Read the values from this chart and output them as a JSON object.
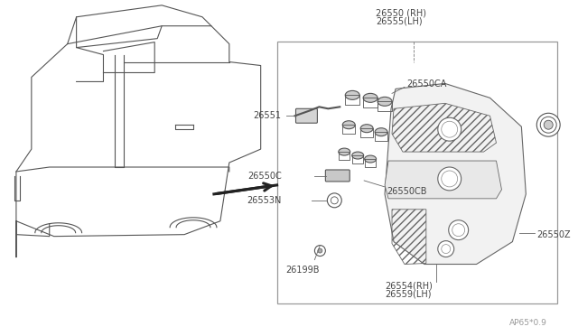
{
  "bg_color": "#ffffff",
  "line_color": "#555555",
  "text_color": "#555555",
  "watermark": "AP65*0.9",
  "labels": {
    "26550_RH": "26550 (RH)",
    "26555_LH": "26555(LH)",
    "26551": "26551",
    "26550CA": "26550CA",
    "26550C": "26550C",
    "26550CB": "26550CB",
    "26553N": "26553N",
    "26199B": "26199B",
    "26550Z": "26550Z",
    "26554_RH": "26554(RH)",
    "26559_LH": "26559(LH)"
  }
}
